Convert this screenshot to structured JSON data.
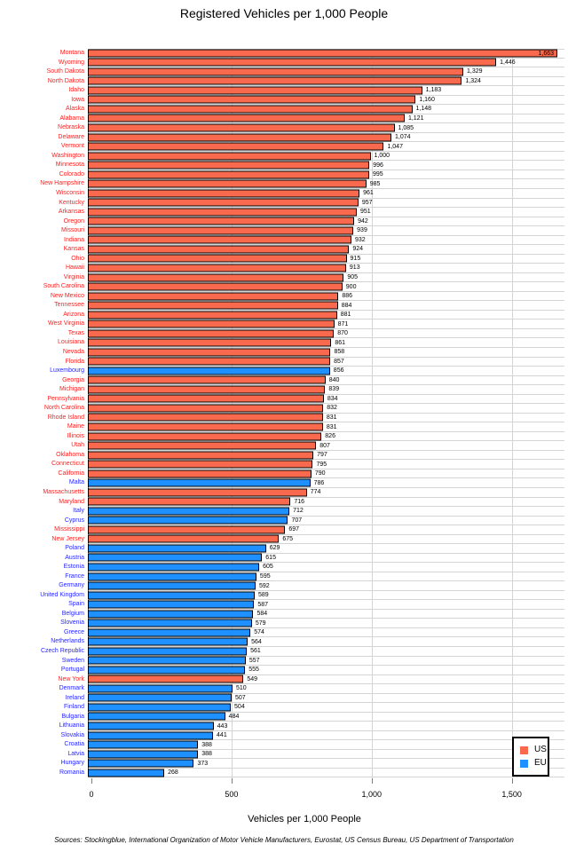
{
  "footer": {
    "sources": "Sources: Stockingblue, International Organization of Motor Vehicle Manufacturers, Eurostat, US Census Bureau, US Department of Transportation"
  },
  "chart_data": {
    "type": "bar",
    "orientation": "horizontal",
    "title": "Registered Vehicles per 1,000 People",
    "xlabel": "Vehicles per 1,000 People",
    "xlim": [
      0,
      1688
    ],
    "grid": true,
    "bar_colors": {
      "US": "#F9694E",
      "EU": "#1E90FF"
    },
    "label_colors": {
      "US": "#FF2020",
      "EU": "#2828FF"
    },
    "xticks": [
      {
        "label": "0",
        "value": 0,
        "grid": false
      },
      {
        "label": "500",
        "value": 500,
        "grid": true
      },
      {
        "label": "1,000",
        "value": 1000,
        "grid": true
      },
      {
        "label": "1,500",
        "value": 1500,
        "grid": true
      }
    ],
    "legend": {
      "position": "bottom-right",
      "entries": [
        {
          "label": "US",
          "color": "#F9694E"
        },
        {
          "label": "EU",
          "color": "#1E90FF"
        }
      ]
    },
    "rows": [
      {
        "label": "Montana",
        "value": 1663,
        "text": "1,663",
        "group": "US",
        "inside": true
      },
      {
        "label": "Wyoming",
        "value": 1446,
        "text": "1,446",
        "group": "US"
      },
      {
        "label": "South Dakota",
        "value": 1329,
        "text": "1,329",
        "group": "US"
      },
      {
        "label": "North Dakota",
        "value": 1324,
        "text": "1,324",
        "group": "US"
      },
      {
        "label": "Idaho",
        "value": 1183,
        "text": "1,183",
        "group": "US"
      },
      {
        "label": "Iowa",
        "value": 1160,
        "text": "1,160",
        "group": "US"
      },
      {
        "label": "Alaska",
        "value": 1148,
        "text": "1,148",
        "group": "US"
      },
      {
        "label": "Alabama",
        "value": 1121,
        "text": "1,121",
        "group": "US"
      },
      {
        "label": "Nebraska",
        "value": 1085,
        "text": "1,085",
        "group": "US"
      },
      {
        "label": "Delaware",
        "value": 1074,
        "text": "1,074",
        "group": "US"
      },
      {
        "label": "Vermont",
        "value": 1047,
        "text": "1,047",
        "group": "US"
      },
      {
        "label": "Washington",
        "value": 1000,
        "text": "1,000",
        "group": "US"
      },
      {
        "label": "Minnesota",
        "value": 996,
        "text": "996",
        "group": "US"
      },
      {
        "label": "Colorado",
        "value": 995,
        "text": "995",
        "group": "US"
      },
      {
        "label": "New Hampshire",
        "value": 985,
        "text": "985",
        "group": "US"
      },
      {
        "label": "Wisconsin",
        "value": 961,
        "text": "961",
        "group": "US"
      },
      {
        "label": "Kentucky",
        "value": 957,
        "text": "957",
        "group": "US"
      },
      {
        "label": "Arkansas",
        "value": 951,
        "text": "951",
        "group": "US"
      },
      {
        "label": "Oregon",
        "value": 942,
        "text": "942",
        "group": "US"
      },
      {
        "label": "Missouri",
        "value": 939,
        "text": "939",
        "group": "US"
      },
      {
        "label": "Indiana",
        "value": 932,
        "text": "932",
        "group": "US"
      },
      {
        "label": "Kansas",
        "value": 924,
        "text": "924",
        "group": "US"
      },
      {
        "label": "Ohio",
        "value": 915,
        "text": "915",
        "group": "US"
      },
      {
        "label": "Hawaii",
        "value": 913,
        "text": "913",
        "group": "US"
      },
      {
        "label": "Virginia",
        "value": 905,
        "text": "905",
        "group": "US"
      },
      {
        "label": "South Carolina",
        "value": 900,
        "text": "900",
        "group": "US"
      },
      {
        "label": "New Mexico",
        "value": 886,
        "text": "886",
        "group": "US"
      },
      {
        "label": "Tennessee",
        "value": 884,
        "text": "884",
        "group": "US"
      },
      {
        "label": "Arizona",
        "value": 881,
        "text": "881",
        "group": "US"
      },
      {
        "label": "West Virginia",
        "value": 871,
        "text": "871",
        "group": "US"
      },
      {
        "label": "Texas",
        "value": 870,
        "text": "870",
        "group": "US"
      },
      {
        "label": "Louisiana",
        "value": 861,
        "text": "861",
        "group": "US"
      },
      {
        "label": "Nevada",
        "value": 858,
        "text": "858",
        "group": "US"
      },
      {
        "label": "Florida",
        "value": 857,
        "text": "857",
        "group": "US"
      },
      {
        "label": "Luxembourg",
        "value": 856,
        "text": "856",
        "group": "EU"
      },
      {
        "label": "Georgia",
        "value": 840,
        "text": "840",
        "group": "US"
      },
      {
        "label": "Michigan",
        "value": 839,
        "text": "839",
        "group": "US"
      },
      {
        "label": "Pennsylvania",
        "value": 834,
        "text": "834",
        "group": "US"
      },
      {
        "label": "North Carolina",
        "value": 832,
        "text": "832",
        "group": "US"
      },
      {
        "label": "Rhode Island",
        "value": 831,
        "text": "831",
        "group": "US"
      },
      {
        "label": "Maine",
        "value": 831,
        "text": "831",
        "group": "US"
      },
      {
        "label": "Illinois",
        "value": 826,
        "text": "826",
        "group": "US"
      },
      {
        "label": "Utah",
        "value": 807,
        "text": "807",
        "group": "US"
      },
      {
        "label": "Oklahoma",
        "value": 797,
        "text": "797",
        "group": "US"
      },
      {
        "label": "Connecticut",
        "value": 795,
        "text": "795",
        "group": "US"
      },
      {
        "label": "California",
        "value": 790,
        "text": "790",
        "group": "US"
      },
      {
        "label": "Malta",
        "value": 786,
        "text": "786",
        "group": "EU"
      },
      {
        "label": "Massachusetts",
        "value": 774,
        "text": "774",
        "group": "US"
      },
      {
        "label": "Maryland",
        "value": 716,
        "text": "716",
        "group": "US"
      },
      {
        "label": "Italy",
        "value": 712,
        "text": "712",
        "group": "EU"
      },
      {
        "label": "Cyprus",
        "value": 707,
        "text": "707",
        "group": "EU"
      },
      {
        "label": "Mississippi",
        "value": 697,
        "text": "697",
        "group": "US"
      },
      {
        "label": "New Jersey",
        "value": 675,
        "text": "675",
        "group": "US"
      },
      {
        "label": "Poland",
        "value": 629,
        "text": "629",
        "group": "EU"
      },
      {
        "label": "Austria",
        "value": 615,
        "text": "615",
        "group": "EU"
      },
      {
        "label": "Estonia",
        "value": 605,
        "text": "605",
        "group": "EU"
      },
      {
        "label": "France",
        "value": 595,
        "text": "595",
        "group": "EU"
      },
      {
        "label": "Germany",
        "value": 592,
        "text": "592",
        "group": "EU"
      },
      {
        "label": "United Kingdom",
        "value": 589,
        "text": "589",
        "group": "EU"
      },
      {
        "label": "Spain",
        "value": 587,
        "text": "587",
        "group": "EU"
      },
      {
        "label": "Belgium",
        "value": 584,
        "text": "584",
        "group": "EU"
      },
      {
        "label": "Slovenia",
        "value": 579,
        "text": "579",
        "group": "EU"
      },
      {
        "label": "Greece",
        "value": 574,
        "text": "574",
        "group": "EU"
      },
      {
        "label": "Netherlands",
        "value": 564,
        "text": "564",
        "group": "EU"
      },
      {
        "label": "Czech Republic",
        "value": 561,
        "text": "561",
        "group": "EU"
      },
      {
        "label": "Sweden",
        "value": 557,
        "text": "557",
        "group": "EU"
      },
      {
        "label": "Portugal",
        "value": 555,
        "text": "555",
        "group": "EU"
      },
      {
        "label": "New York",
        "value": 549,
        "text": "549",
        "group": "US"
      },
      {
        "label": "Denmark",
        "value": 510,
        "text": "510",
        "group": "EU"
      },
      {
        "label": "Ireland",
        "value": 507,
        "text": "507",
        "group": "EU"
      },
      {
        "label": "Finland",
        "value": 504,
        "text": "504",
        "group": "EU"
      },
      {
        "label": "Bulgaria",
        "value": 484,
        "text": "484",
        "group": "EU"
      },
      {
        "label": "Lithuania",
        "value": 443,
        "text": "443",
        "group": "EU"
      },
      {
        "label": "Slovakia",
        "value": 441,
        "text": "441",
        "group": "EU"
      },
      {
        "label": "Croatia",
        "value": 388,
        "text": "388",
        "group": "EU"
      },
      {
        "label": "Latvia",
        "value": 388,
        "text": "388",
        "group": "EU"
      },
      {
        "label": "Hungary",
        "value": 373,
        "text": "373",
        "group": "EU"
      },
      {
        "label": "Romania",
        "value": 268,
        "text": "268",
        "group": "EU"
      }
    ]
  }
}
